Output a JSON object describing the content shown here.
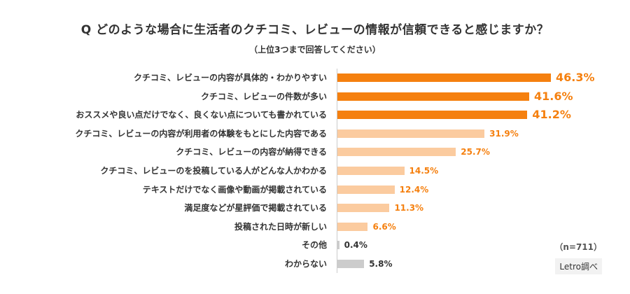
{
  "chart_data": {
    "type": "bar",
    "orientation": "horizontal",
    "title": "Q どのような場合に生活者のクチコミ、レビューの情報が信頼できると感じますか？",
    "subtitle": "（上位3つまで回答してください）",
    "unit": "%",
    "categories": [
      "クチコミ、レビューの内容が具体的・わかりやすい",
      "クチコミ、レビューの件数が多い",
      "おススメや良い点だけでなく、良くない点についても書かれている",
      "クチコミ、レビューの内容が利用者の体験をもとにした内容である",
      "クチコミ、レビューの内容が納得できる",
      "クチコミ、レビューのを投稿している人がどんな人かわかる",
      "テキストだけでなく画像や動画が掲載されている",
      "満足度などが星評価で掲載されている",
      "投稿された日時が新しい",
      "その他",
      "わからない"
    ],
    "values": [
      46.3,
      41.6,
      41.2,
      31.9,
      25.7,
      14.5,
      12.4,
      11.3,
      6.6,
      0.4,
      5.8
    ],
    "labels": [
      "46.3%",
      "41.6%",
      "41.2%",
      "31.9%",
      "25.7%",
      "14.5%",
      "12.4%",
      "11.3%",
      "6.6%",
      "0.4%",
      "5.8%"
    ],
    "tiers": [
      "top",
      "top",
      "top",
      "mid",
      "mid",
      "mid",
      "mid",
      "mid",
      "mid",
      "other",
      "other"
    ],
    "colors": {
      "top": "#f5800f",
      "mid": "#fbcb9f",
      "other": "#cccccc",
      "top_label": "#f5800f",
      "mid_label": "#f5800f",
      "other_label": "#333333"
    },
    "xlim": [
      0,
      50
    ],
    "grid": false,
    "note": "（n=711）",
    "source": "Letro調べ"
  }
}
